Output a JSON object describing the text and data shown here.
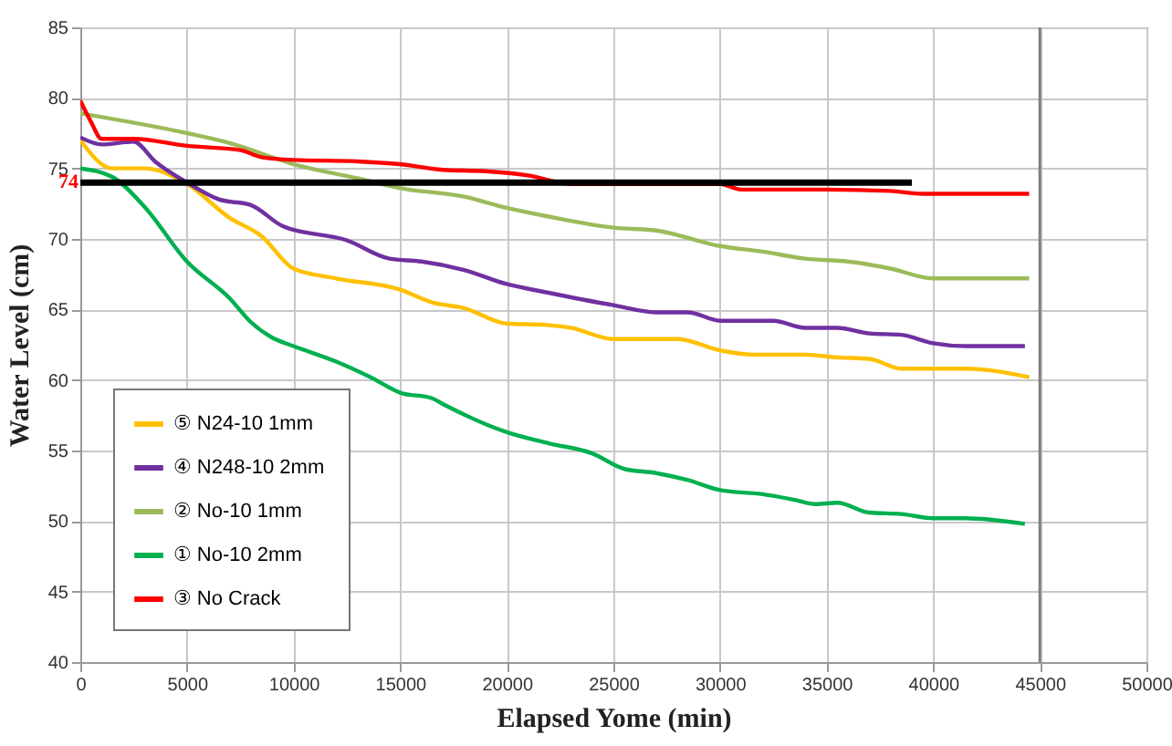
{
  "chart_data": {
    "type": "line",
    "xlabel": "Elapsed Yome (min)",
    "ylabel": "Water Level (cm)",
    "xlim": [
      0,
      50000
    ],
    "xticks": [
      0,
      5000,
      10000,
      15000,
      20000,
      25000,
      30000,
      35000,
      40000,
      45000,
      50000
    ],
    "ylim": [
      40,
      85
    ],
    "yticks": [
      40,
      45,
      50,
      55,
      60,
      65,
      70,
      75,
      80,
      85
    ],
    "grid": true,
    "legend": "bottom left",
    "series": [
      {
        "name": "⑤ N24-10  1mm",
        "color": "#ffc000",
        "x": [
          0,
          1500,
          3000,
          5000,
          7000,
          8500,
          10000,
          12000,
          15000,
          16500,
          18000,
          20000,
          21900,
          23000,
          25000,
          28000,
          30000,
          31500,
          34000,
          35500,
          37000,
          38500,
          40000,
          41500,
          44500
        ],
        "values": [
          77.0,
          75.0,
          75.0,
          73.9,
          71.5,
          70.2,
          67.9,
          67.2,
          66.4,
          65.5,
          65.1,
          64.0,
          63.9,
          63.7,
          62.9,
          62.9,
          62.1,
          61.8,
          61.8,
          61.6,
          61.5,
          60.8,
          60.8,
          60.8,
          60.2
        ]
      },
      {
        "name": "④ N248-10  2mm",
        "color": "#7030a0",
        "x": [
          0,
          1000,
          2500,
          3500,
          5000,
          6500,
          8000,
          9500,
          12500,
          14500,
          16000,
          18000,
          20000,
          21900,
          25000,
          27000,
          28500,
          30000,
          32500,
          34000,
          35500,
          37000,
          38500,
          40000,
          41500,
          44300
        ],
        "values": [
          77.2,
          76.7,
          76.9,
          75.5,
          74.0,
          72.8,
          72.4,
          70.9,
          69.9,
          68.6,
          68.4,
          67.8,
          66.8,
          66.2,
          65.3,
          64.8,
          64.8,
          64.2,
          64.2,
          63.7,
          63.7,
          63.3,
          63.2,
          62.6,
          62.4,
          62.4
        ]
      },
      {
        "name": "② No-10  1mm",
        "color": "#9bbb59",
        "x": [
          0,
          5000,
          7000,
          10000,
          13000,
          15000,
          18000,
          20000,
          21900,
          25000,
          27000,
          30000,
          32000,
          34000,
          36000,
          38000,
          40000,
          44500
        ],
        "values": [
          78.9,
          77.5,
          76.8,
          75.3,
          74.3,
          73.6,
          73.0,
          72.2,
          71.6,
          70.8,
          70.6,
          69.5,
          69.1,
          68.6,
          68.4,
          67.9,
          67.2,
          67.2
        ]
      },
      {
        "name": "① No-10  2mm",
        "color": "#00b050",
        "x": [
          0,
          1500,
          3000,
          5000,
          7000,
          8000,
          9000,
          10000,
          12000,
          13600,
          15000,
          16500,
          17000,
          20000,
          22000,
          24000,
          25500,
          27000,
          28500,
          30000,
          32000,
          33500,
          34500,
          35500,
          37000,
          38500,
          40000,
          41500,
          44300
        ],
        "values": [
          75.0,
          74.4,
          72.3,
          68.4,
          65.8,
          64.1,
          63.0,
          62.4,
          61.3,
          60.2,
          59.1,
          58.7,
          58.3,
          56.3,
          55.5,
          54.8,
          53.7,
          53.4,
          52.9,
          52.2,
          51.9,
          51.5,
          51.2,
          51.3,
          50.6,
          50.5,
          50.2,
          50.2,
          49.8
        ]
      },
      {
        "name": "③ No Crack",
        "color": "#ff0000",
        "x": [
          0,
          500,
          1000,
          2500,
          5000,
          7500,
          8500,
          10000,
          13000,
          15000,
          17000,
          19000,
          21000,
          23000,
          30000,
          31000,
          35000,
          38000,
          39500,
          44500
        ],
        "values": [
          79.8,
          78.3,
          77.1,
          77.1,
          76.6,
          76.3,
          75.8,
          75.6,
          75.5,
          75.3,
          74.9,
          74.8,
          74.5,
          73.9,
          73.9,
          73.5,
          73.5,
          73.4,
          73.2,
          73.2
        ]
      },
      {
        "color": "#000000",
        "x": [
          0,
          39000
        ],
        "values": [
          74,
          74
        ]
      }
    ],
    "ref_lines": [
      {
        "axis": "x",
        "value": 45000,
        "color": "#808080"
      }
    ],
    "annotations": [
      {
        "text": "74",
        "x": 0,
        "y": 74
      }
    ]
  }
}
